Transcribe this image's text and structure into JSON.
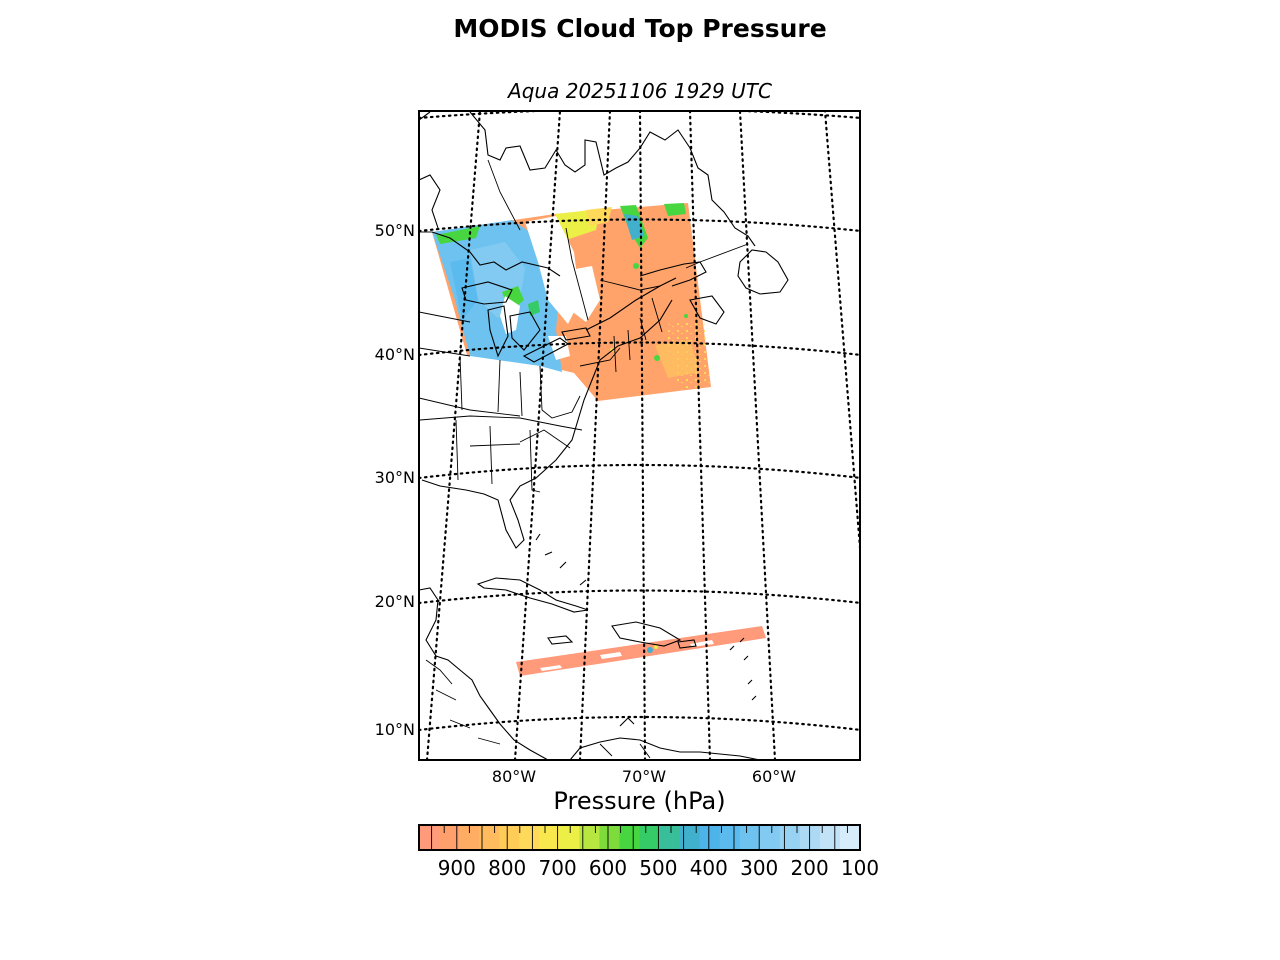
{
  "title": "MODIS Cloud Top Pressure",
  "subtitle": "Aqua 20251106 1929 UTC",
  "map": {
    "lat_labels": [
      "50°N",
      "40°N",
      "30°N",
      "20°N",
      "10°N"
    ],
    "lon_labels": [
      "80°W",
      "70°W",
      "60°W"
    ],
    "gridlines": "dotted"
  },
  "colorbar": {
    "title": "Pressure (hPa)",
    "tick_labels": [
      "900",
      "800",
      "700",
      "600",
      "500",
      "400",
      "300",
      "200",
      "100"
    ],
    "range_hpa": [
      975,
      100
    ],
    "colors": [
      "#ff9a7a",
      "#ffa06c",
      "#ffad63",
      "#ffbb5e",
      "#ffcc58",
      "#ffd95a",
      "#f8e84e",
      "#ecef45",
      "#b8e640",
      "#7ddc3c",
      "#47d63f",
      "#35cc68",
      "#38be99",
      "#40b0cc",
      "#4db3e8",
      "#5cbbee",
      "#6ec2ef",
      "#82caf1",
      "#97d2f3",
      "#add9f5",
      "#c2e2f8",
      "#d6ecfb"
    ]
  },
  "legend_colors": {
    "low_cloud": "#ffa36b",
    "mid_cloud": "#47d63f",
    "high_cloud": "#6ec2ef"
  }
}
